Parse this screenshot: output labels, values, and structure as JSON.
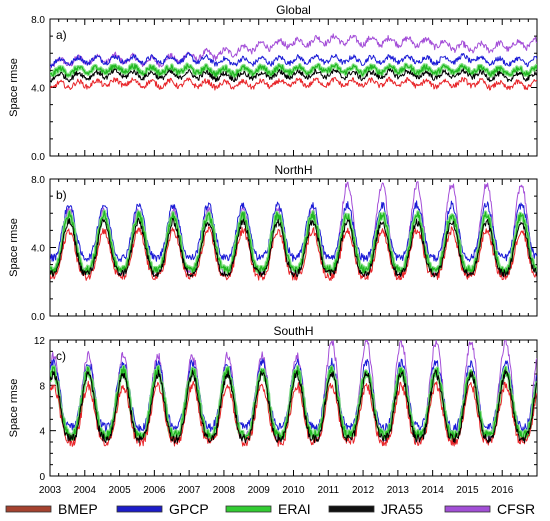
{
  "chart_data": [
    {
      "type": "line",
      "title": "Global",
      "panel_label": "a)",
      "ylabel": "Space rmse",
      "xlim": [
        2003,
        2017
      ],
      "ylim": [
        0,
        8
      ],
      "yticks": [
        "0.0",
        "4.0",
        "8.0"
      ],
      "series": [
        {
          "name": "BMEP",
          "base": [
            4.1,
            4.2,
            4.3,
            4.2,
            4.25,
            4.15,
            4.2,
            4.25,
            4.3,
            4.25,
            4.3,
            4.2,
            4.3,
            4.1,
            4.2
          ],
          "amp": 0.3
        },
        {
          "name": "GPCP",
          "base": [
            5.5,
            5.6,
            5.65,
            5.6,
            5.7,
            5.5,
            5.55,
            5.6,
            5.65,
            5.6,
            5.65,
            5.6,
            5.7,
            5.5,
            5.55
          ],
          "amp": 0.3
        },
        {
          "name": "ERAI",
          "base": [
            4.9,
            5.0,
            5.1,
            5.0,
            5.05,
            4.95,
            5.0,
            5.05,
            5.1,
            5.0,
            5.1,
            5.0,
            5.1,
            4.9,
            5.0
          ],
          "amp": 0.3
        },
        {
          "name": "JRA55",
          "base": [
            4.6,
            4.7,
            4.8,
            4.7,
            4.75,
            4.65,
            4.7,
            4.75,
            4.8,
            4.7,
            4.8,
            4.7,
            4.8,
            4.6,
            4.7
          ],
          "amp": 0.3
        },
        {
          "name": "CFSR",
          "base": [
            5.4,
            5.6,
            5.7,
            5.5,
            5.8,
            6.0,
            6.4,
            6.6,
            6.8,
            6.7,
            6.7,
            6.6,
            6.3,
            6.4,
            6.6
          ],
          "amp": 0.35
        }
      ]
    },
    {
      "type": "line",
      "title": "NorthH",
      "panel_label": "b)",
      "ylabel": "Space rmse",
      "xlim": [
        2003,
        2017
      ],
      "ylim": [
        0,
        8
      ],
      "yticks": [
        "0.0",
        "4.0",
        "8.0"
      ],
      "series": [
        {
          "name": "BMEP",
          "low": 2.3,
          "high": 5.0
        },
        {
          "name": "GPCP",
          "low": 3.4,
          "high": 6.5
        },
        {
          "name": "ERAI",
          "low": 2.7,
          "high": 5.9
        },
        {
          "name": "JRA55",
          "low": 2.5,
          "high": 5.5
        },
        {
          "name": "CFSR",
          "low": 2.6,
          "high": 6.2,
          "high_late": 7.7
        }
      ]
    },
    {
      "type": "line",
      "title": "SouthH",
      "panel_label": "c)",
      "ylabel": "Space rmse",
      "xlim": [
        2003,
        2017
      ],
      "ylim": [
        0,
        12
      ],
      "yticks": [
        "0",
        "4",
        "8",
        "12"
      ],
      "series": [
        {
          "name": "BMEP",
          "low": 3.0,
          "high": 8.0
        },
        {
          "name": "GPCP",
          "low": 4.3,
          "high": 10.0
        },
        {
          "name": "ERAI",
          "low": 3.6,
          "high": 9.3
        },
        {
          "name": "JRA55",
          "low": 3.3,
          "high": 9.0
        },
        {
          "name": "CFSR",
          "low": 3.5,
          "high": 10.6,
          "high_late": 11.8
        }
      ]
    }
  ],
  "x_tick_labels": [
    "2003",
    "2004",
    "2005",
    "2006",
    "2007",
    "2008",
    "2009",
    "2010",
    "2011",
    "2012",
    "2013",
    "2014",
    "2015",
    "2016"
  ],
  "legend": [
    {
      "label": "BMEP",
      "color": "#a5422f"
    },
    {
      "label": "GPCP",
      "color": "#1c1cc8"
    },
    {
      "label": "ERAI",
      "color": "#33cc33"
    },
    {
      "label": "JRA55",
      "color": "#111111"
    },
    {
      "label": "CFSR",
      "color": "#a24fd6"
    }
  ],
  "series_colors": {
    "BMEP": "#e8262a",
    "GPCP": "#1c1cd6",
    "ERAI": "#22b822",
    "JRA55": "#000000",
    "CFSR": "#a44fd8"
  }
}
